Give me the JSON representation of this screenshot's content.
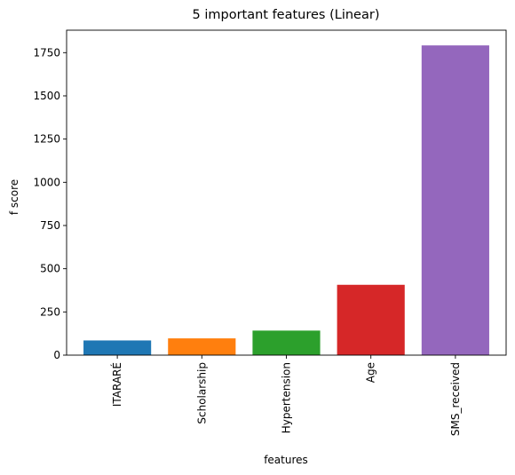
{
  "chart_data": {
    "type": "bar",
    "title": "5 important features (Linear)",
    "xlabel": "features",
    "ylabel": "f score",
    "categories": [
      "ITARARÉ",
      "Scholarship",
      "Hypertension",
      "Age",
      "SMS_received"
    ],
    "values": [
      85,
      97,
      142,
      407,
      1792
    ],
    "colors": [
      "#1f77b4",
      "#ff7f0e",
      "#2ca02c",
      "#d62728",
      "#9467bd"
    ],
    "ylim": [
      0,
      1880
    ],
    "yticks": [
      0,
      250,
      500,
      750,
      1000,
      1250,
      1500,
      1750
    ],
    "grid": false,
    "legend": "none"
  }
}
